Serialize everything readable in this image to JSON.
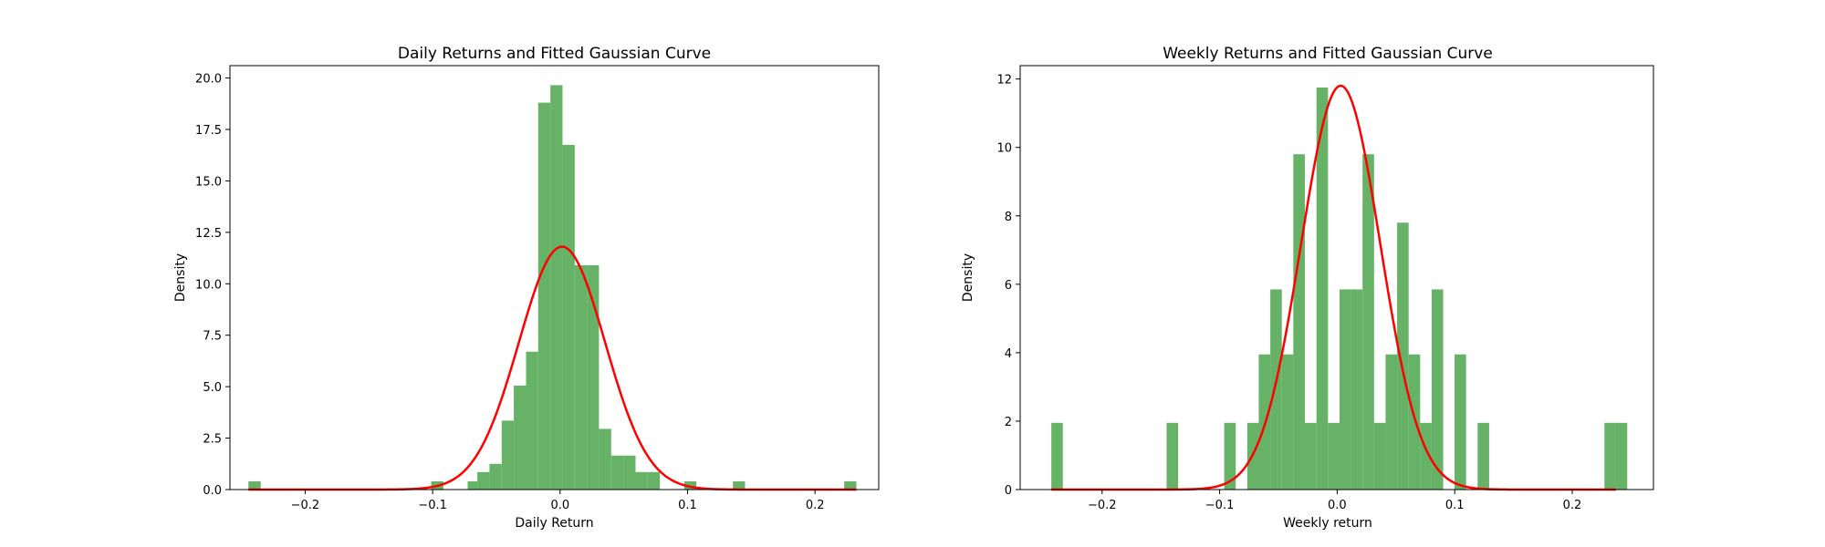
{
  "chart_data": [
    {
      "type": "bar",
      "title": "Daily Returns and Fitted Gaussian Curve",
      "xlabel": "Daily Return",
      "ylabel": "Density",
      "xlim": [
        -0.259,
        0.25
      ],
      "ylim": [
        0,
        20.6
      ],
      "x_ticks": [
        "−0.2",
        "−0.1",
        "0.0",
        "0.1",
        "0.2"
      ],
      "x_tick_values": [
        -0.2,
        -0.1,
        0.0,
        0.1,
        0.2
      ],
      "y_ticks": [
        "0.0",
        "2.5",
        "5.0",
        "7.5",
        "10.0",
        "12.5",
        "15.0",
        "17.5",
        "20.0"
      ],
      "y_tick_values": [
        0,
        2.5,
        5,
        7.5,
        10,
        12.5,
        15,
        17.5,
        20
      ],
      "grid": false,
      "bar_color": "#66b266",
      "bins": [
        {
          "x0": -0.2445,
          "x1": -0.2349,
          "y": 0.4
        },
        {
          "x0": -0.1011,
          "x1": -0.0916,
          "y": 0.4
        },
        {
          "x0": -0.0725,
          "x1": -0.0649,
          "y": 0.4
        },
        {
          "x0": -0.0649,
          "x1": -0.0554,
          "y": 0.85
        },
        {
          "x0": -0.0554,
          "x1": -0.0458,
          "y": 1.25
        },
        {
          "x0": -0.0458,
          "x1": -0.0363,
          "y": 3.35
        },
        {
          "x0": -0.0363,
          "x1": -0.0267,
          "y": 5.05
        },
        {
          "x0": -0.0267,
          "x1": -0.0172,
          "y": 6.7
        },
        {
          "x0": -0.0172,
          "x1": -0.0076,
          "y": 18.8
        },
        {
          "x0": -0.0076,
          "x1": 0.0019,
          "y": 19.65
        },
        {
          "x0": 0.0019,
          "x1": 0.0115,
          "y": 16.75
        },
        {
          "x0": 0.0115,
          "x1": 0.021,
          "y": 10.9
        },
        {
          "x0": 0.021,
          "x1": 0.0305,
          "y": 10.9
        },
        {
          "x0": 0.0305,
          "x1": 0.0401,
          "y": 2.95
        },
        {
          "x0": 0.0401,
          "x1": 0.0496,
          "y": 1.65
        },
        {
          "x0": 0.0496,
          "x1": 0.0592,
          "y": 1.65
        },
        {
          "x0": 0.0592,
          "x1": 0.0687,
          "y": 0.85
        },
        {
          "x0": 0.0687,
          "x1": 0.0783,
          "y": 0.85
        },
        {
          "x0": 0.0974,
          "x1": 0.1069,
          "y": 0.4
        },
        {
          "x0": 0.1356,
          "x1": 0.1451,
          "y": 0.4
        },
        {
          "x0": 0.2229,
          "x1": 0.2324,
          "y": 0.4
        }
      ],
      "series": [
        {
          "name": "",
          "kind": "line",
          "color": "#ff0000",
          "fit": "gaussian",
          "mu": 0.0015,
          "sigma": 0.0338,
          "x_range": [
            -0.2445,
            0.2324
          ]
        }
      ]
    },
    {
      "type": "bar",
      "title": "Weekly Returns and Fitted Gaussian Curve",
      "xlabel": "Weekly return",
      "ylabel": "Density",
      "xlim": [
        -0.2697,
        0.2691
      ],
      "ylim": [
        0,
        12.39
      ],
      "x_ticks": [
        "−0.2",
        "−0.1",
        "0.0",
        "0.1",
        "0.2"
      ],
      "x_tick_values": [
        -0.2,
        -0.1,
        0.0,
        0.1,
        0.2
      ],
      "y_ticks": [
        "0",
        "2",
        "4",
        "6",
        "8",
        "10",
        "12"
      ],
      "y_tick_values": [
        0,
        2,
        4,
        6,
        8,
        10,
        12
      ],
      "grid": false,
      "bar_color": "#66b266",
      "bins": [
        {
          "x0": -0.2432,
          "x1": -0.2334,
          "y": 1.95
        },
        {
          "x0": -0.1451,
          "x1": -0.1353,
          "y": 1.95
        },
        {
          "x0": -0.0961,
          "x1": -0.0863,
          "y": 1.95
        },
        {
          "x0": -0.0765,
          "x1": -0.0667,
          "y": 1.95
        },
        {
          "x0": -0.0667,
          "x1": -0.0569,
          "y": 3.95
        },
        {
          "x0": -0.0569,
          "x1": -0.0471,
          "y": 5.85
        },
        {
          "x0": -0.0471,
          "x1": -0.0373,
          "y": 3.95
        },
        {
          "x0": -0.0373,
          "x1": -0.0275,
          "y": 9.8
        },
        {
          "x0": -0.0275,
          "x1": -0.0176,
          "y": 1.95
        },
        {
          "x0": -0.0176,
          "x1": -0.0078,
          "y": 11.75
        },
        {
          "x0": -0.0078,
          "x1": 0.002,
          "y": 1.95
        },
        {
          "x0": 0.002,
          "x1": 0.0118,
          "y": 5.85
        },
        {
          "x0": 0.0118,
          "x1": 0.0216,
          "y": 5.85
        },
        {
          "x0": 0.0216,
          "x1": 0.0314,
          "y": 9.8
        },
        {
          "x0": 0.0314,
          "x1": 0.0412,
          "y": 1.95
        },
        {
          "x0": 0.0412,
          "x1": 0.051,
          "y": 3.95
        },
        {
          "x0": 0.051,
          "x1": 0.0608,
          "y": 7.8
        },
        {
          "x0": 0.0608,
          "x1": 0.0706,
          "y": 3.95
        },
        {
          "x0": 0.0706,
          "x1": 0.0804,
          "y": 1.95
        },
        {
          "x0": 0.0804,
          "x1": 0.0902,
          "y": 5.85
        },
        {
          "x0": 0.0999,
          "x1": 0.1097,
          "y": 3.95
        },
        {
          "x0": 0.1195,
          "x1": 0.1293,
          "y": 1.95
        },
        {
          "x0": 0.2274,
          "x1": 0.2372,
          "y": 1.95
        },
        {
          "x0": 0.2372,
          "x1": 0.2468,
          "y": 1.95
        }
      ],
      "series": [
        {
          "name": "",
          "kind": "line",
          "color": "#ff0000",
          "fit": "gaussian",
          "mu": 0.003,
          "sigma": 0.0338,
          "x_range": [
            -0.2432,
            0.2372
          ]
        }
      ]
    }
  ]
}
